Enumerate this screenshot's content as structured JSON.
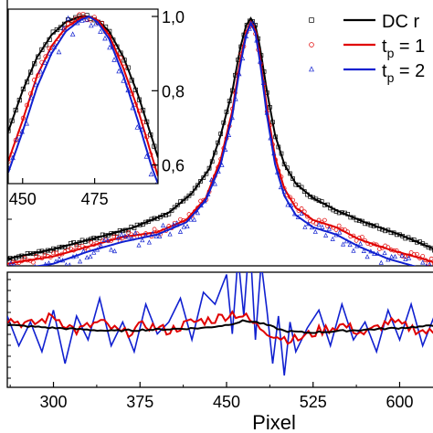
{
  "chart_data": [
    {
      "panel": "main",
      "type": "line",
      "xlim": [
        260,
        640
      ],
      "ylim": [
        0,
        1
      ],
      "grid": false,
      "legend_position": "top-right",
      "legend": [
        {
          "label": "DC r",
          "line_color": "#000000",
          "marker": "square"
        },
        {
          "label": "t",
          "subscript": "p",
          "suffix": " = 1",
          "line_color": "#e00000",
          "marker": "circle"
        },
        {
          "label": "t",
          "subscript": "p",
          "suffix": " = 2",
          "line_color": "#1020d0",
          "marker": "triangle"
        }
      ],
      "series": [
        {
          "color": "#000000",
          "marker": "square",
          "x": [
            260,
            300,
            340,
            370,
            400,
            420,
            435,
            445,
            455,
            462,
            467,
            471,
            475,
            479,
            485,
            492,
            500,
            510,
            525,
            545,
            570,
            600,
            625,
            640
          ],
          "y": [
            0.01,
            0.05,
            0.1,
            0.14,
            0.2,
            0.28,
            0.38,
            0.52,
            0.7,
            0.88,
            0.97,
            1.0,
            0.97,
            0.88,
            0.7,
            0.52,
            0.4,
            0.32,
            0.26,
            0.21,
            0.16,
            0.11,
            0.06,
            0.03
          ]
        },
        {
          "color": "#e00000",
          "marker": "circle",
          "x": [
            260,
            300,
            330,
            360,
            390,
            415,
            432,
            445,
            455,
            462,
            467,
            471,
            475,
            479,
            485,
            492,
            500,
            510,
            525,
            545,
            565,
            590,
            620,
            640
          ],
          "y": [
            -0.01,
            0.02,
            0.06,
            0.1,
            0.12,
            0.17,
            0.26,
            0.42,
            0.62,
            0.83,
            0.94,
            0.985,
            0.95,
            0.84,
            0.63,
            0.43,
            0.3,
            0.22,
            0.17,
            0.14,
            0.09,
            0.05,
            0.01,
            -0.02
          ]
        },
        {
          "color": "#1020d0",
          "marker": "triangle",
          "x": [
            260,
            300,
            330,
            360,
            390,
            415,
            432,
            445,
            455,
            462,
            467,
            471,
            475,
            479,
            485,
            492,
            500,
            510,
            525,
            545,
            565,
            590,
            620,
            640
          ],
          "y": [
            -0.04,
            -0.01,
            0.04,
            0.08,
            0.11,
            0.16,
            0.25,
            0.4,
            0.6,
            0.81,
            0.93,
            0.98,
            0.94,
            0.82,
            0.6,
            0.4,
            0.27,
            0.19,
            0.14,
            0.11,
            0.06,
            0.01,
            -0.03,
            -0.05
          ]
        }
      ]
    },
    {
      "panel": "inset",
      "type": "line",
      "xlim": [
        445,
        497
      ],
      "ylim": [
        0.55,
        1.0
      ],
      "y_ticks": [
        0.6,
        0.8,
        1.0
      ],
      "y_tick_labels": [
        "0,6",
        "0,8",
        "1,0"
      ],
      "x_ticks": [
        450,
        475
      ],
      "x_tick_labels": [
        "450",
        "475"
      ],
      "series": [
        {
          "color": "#000000",
          "marker": "square",
          "x": [
            445,
            450,
            455,
            460,
            465,
            470,
            473,
            476,
            480,
            485,
            490,
            495,
            497
          ],
          "y": [
            0.69,
            0.8,
            0.89,
            0.95,
            0.985,
            1.0,
            1.0,
            0.99,
            0.96,
            0.89,
            0.79,
            0.67,
            0.62
          ]
        },
        {
          "color": "#e00000",
          "marker": "circle",
          "x": [
            445,
            450,
            455,
            460,
            465,
            470,
            473,
            476,
            480,
            485,
            490,
            495,
            497
          ],
          "y": [
            0.61,
            0.72,
            0.84,
            0.92,
            0.97,
            0.995,
            1.0,
            0.99,
            0.95,
            0.86,
            0.75,
            0.62,
            0.57
          ]
        },
        {
          "color": "#1020d0",
          "marker": "triangle",
          "x": [
            445,
            450,
            455,
            460,
            465,
            470,
            473,
            476,
            480,
            485,
            490,
            495,
            497
          ],
          "y": [
            0.58,
            0.69,
            0.81,
            0.9,
            0.96,
            0.99,
            1.0,
            0.985,
            0.94,
            0.84,
            0.72,
            0.59,
            0.55
          ]
        }
      ]
    },
    {
      "panel": "residual",
      "type": "line",
      "xlim": [
        260,
        640
      ],
      "ylim": [
        -1,
        1
      ],
      "xlabel": "Pixel",
      "x_ticks": [
        300,
        375,
        450,
        525,
        600
      ],
      "x_tick_labels": [
        "300",
        "375",
        "450",
        "525",
        "600"
      ],
      "series": [
        {
          "color": "#000000",
          "x": [
            260,
            300,
            350,
            400,
            430,
            450,
            465,
            475,
            485,
            500,
            520,
            550,
            600,
            640
          ],
          "y": [
            0.05,
            0.0,
            -0.05,
            -0.02,
            0.0,
            0.05,
            0.12,
            0.1,
            0.05,
            -0.05,
            -0.08,
            -0.05,
            0.0,
            0.05
          ]
        },
        {
          "color": "#e00000",
          "x": [
            260,
            280,
            300,
            320,
            340,
            360,
            380,
            400,
            420,
            440,
            455,
            465,
            475,
            485,
            495,
            510,
            530,
            550,
            570,
            590,
            610,
            630,
            640
          ],
          "y": [
            0.15,
            0.05,
            0.2,
            -0.05,
            0.1,
            -0.1,
            0.05,
            -0.05,
            0.1,
            0.15,
            0.25,
            0.2,
            0.05,
            -0.05,
            -0.15,
            -0.2,
            -0.05,
            0.05,
            -0.1,
            0.1,
            0.0,
            -0.1,
            0.1
          ]
        },
        {
          "color": "#1020d0",
          "x": [
            260,
            270,
            280,
            290,
            300,
            310,
            320,
            330,
            340,
            350,
            360,
            370,
            380,
            390,
            400,
            410,
            420,
            430,
            440,
            450,
            455,
            460,
            465,
            470,
            475,
            480,
            485,
            490,
            495,
            500,
            505,
            510,
            520,
            530,
            540,
            550,
            560,
            570,
            580,
            590,
            600,
            610,
            620,
            630,
            640
          ],
          "y": [
            0.2,
            -0.3,
            0.1,
            -0.4,
            0.3,
            -0.6,
            0.2,
            -0.2,
            0.5,
            -0.3,
            0.1,
            -0.4,
            0.4,
            -0.1,
            0.1,
            0.5,
            -0.2,
            0.6,
            0.4,
            0.9,
            -0.1,
            1.2,
            0.2,
            1.55,
            -0.2,
            1.1,
            0.3,
            -0.6,
            0.2,
            -0.8,
            0.1,
            -0.4,
            0.0,
            0.3,
            -0.3,
            0.4,
            -0.2,
            0.1,
            -0.4,
            0.3,
            -0.2,
            0.4,
            -0.3,
            0.2,
            -0.1
          ]
        }
      ]
    }
  ]
}
